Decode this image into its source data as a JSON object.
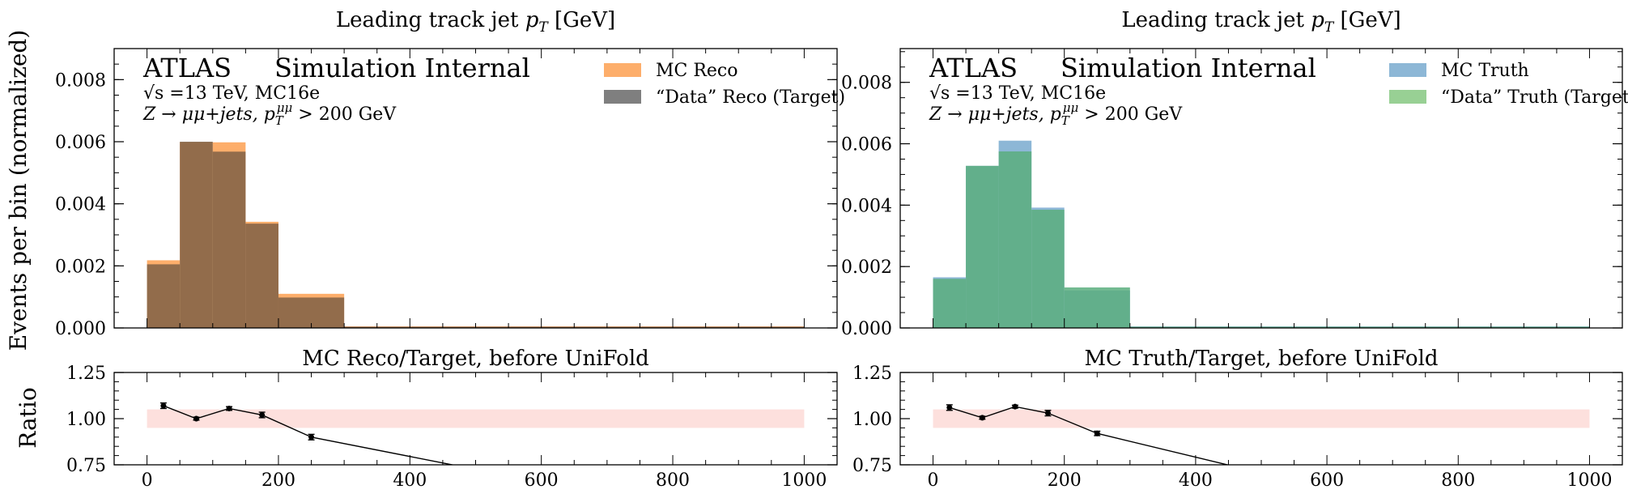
{
  "y_axis_label": "Events per bin (normalized)",
  "ratio_axis_label": "Ratio",
  "chart_data": [
    {
      "type": "histogram",
      "title": "Leading track jet p_T [GeV]",
      "title_prefix": "Leading track jet ",
      "title_var": "p",
      "title_sub": "T",
      "title_suffix": " [GeV]",
      "atlas_label": "ATLAS",
      "atlas_sub": "Simulation Internal",
      "energy_text": "√s =13 TeV, MC16e",
      "process_text": "Z → μμ+jets, p_T^μμ > 200 GeV",
      "process_main": "Z → μμ+jets, p",
      "process_sup": "μμ",
      "process_sub": "T",
      "process_tail": " > 200 GeV",
      "xlim": [
        -50,
        1050
      ],
      "ylim": [
        0,
        0.009
      ],
      "yticks": [
        "0.000",
        "0.002",
        "0.004",
        "0.006",
        "0.008"
      ],
      "ytick_values": [
        0,
        0.002,
        0.004,
        0.006,
        0.008
      ],
      "grid": false,
      "legend_position": "top-right",
      "bin_edges": [
        0,
        50,
        100,
        150,
        200,
        300,
        1000
      ],
      "series": [
        {
          "name": "MC Reco",
          "color": "#fdae6b",
          "values": [
            0.00218,
            0.00598,
            0.00598,
            0.00342,
            0.0011,
            5e-05
          ]
        },
        {
          "name": "“Data” Reco (Target)",
          "color": "#7f6045",
          "legend_color": "#7f7f7f",
          "values": [
            0.00205,
            0.006,
            0.00568,
            0.00336,
            0.00098,
            4e-05
          ]
        }
      ],
      "ratio": {
        "title": "MC Reco/Target, before UniFold",
        "ylim": [
          0.75,
          1.25
        ],
        "yticks": [
          "0.75",
          "1.00",
          "1.25"
        ],
        "ytick_values": [
          0.75,
          1.0,
          1.25
        ],
        "xticks": [
          "0",
          "200",
          "400",
          "600",
          "800",
          "1000"
        ],
        "xtick_values": [
          0,
          200,
          400,
          600,
          800,
          1000
        ],
        "band": [
          0.95,
          1.05
        ],
        "band_color": "#fde0dd",
        "points": [
          {
            "x": 25,
            "y": 1.07,
            "err": 0.015
          },
          {
            "x": 75,
            "y": 1.0,
            "err": 0.008
          },
          {
            "x": 125,
            "y": 1.055,
            "err": 0.01
          },
          {
            "x": 175,
            "y": 1.02,
            "err": 0.015
          },
          {
            "x": 250,
            "y": 0.9,
            "err": 0.015
          },
          {
            "x": 650,
            "y": 0.62,
            "err": 0.0
          }
        ]
      }
    },
    {
      "type": "histogram",
      "title": "Leading track jet p_T [GeV]",
      "title_prefix": "Leading track jet ",
      "title_var": "p",
      "title_sub": "T",
      "title_suffix": " [GeV]",
      "atlas_label": "ATLAS",
      "atlas_sub": "Simulation Internal",
      "energy_text": "√s =13 TeV, MC16e",
      "process_text": "Z → μμ+jets, p_T^μμ > 200 GeV",
      "process_main": "Z → μμ+jets, p",
      "process_sup": "μμ",
      "process_sub": "T",
      "process_tail": " > 200 GeV",
      "xlim": [
        -50,
        1050
      ],
      "ylim": [
        0,
        0.0091
      ],
      "yticks": [
        "0.000",
        "0.002",
        "0.004",
        "0.006",
        "0.008"
      ],
      "ytick_values": [
        0,
        0.002,
        0.004,
        0.006,
        0.008
      ],
      "grid": false,
      "legend_position": "top-right",
      "bin_edges": [
        0,
        50,
        100,
        150,
        200,
        300,
        1000
      ],
      "series": [
        {
          "name": "MC Truth",
          "color": "#8db7d6",
          "values": [
            0.00165,
            0.00528,
            0.0061,
            0.00392,
            0.00122,
            5e-05
          ]
        },
        {
          "name": "“Data” Truth (Target)",
          "color": "#5bae7e",
          "legend_color": "#98d094",
          "values": [
            0.0016,
            0.00528,
            0.00575,
            0.00385,
            0.00132,
            4e-05
          ]
        }
      ],
      "ratio": {
        "title": "MC Truth/Target, before UniFold",
        "ylim": [
          0.75,
          1.25
        ],
        "yticks": [
          "0.75",
          "1.00",
          "1.25"
        ],
        "ytick_values": [
          0.75,
          1.0,
          1.25
        ],
        "xticks": [
          "0",
          "200",
          "400",
          "600",
          "800",
          "1000"
        ],
        "xtick_values": [
          0,
          200,
          400,
          600,
          800,
          1000
        ],
        "band": [
          0.95,
          1.05
        ],
        "band_color": "#fde0dd",
        "points": [
          {
            "x": 25,
            "y": 1.06,
            "err": 0.015
          },
          {
            "x": 75,
            "y": 1.005,
            "err": 0.008
          },
          {
            "x": 125,
            "y": 1.065,
            "err": 0.008
          },
          {
            "x": 175,
            "y": 1.03,
            "err": 0.015
          },
          {
            "x": 250,
            "y": 0.92,
            "err": 0.012
          },
          {
            "x": 600,
            "y": 0.62,
            "err": 0.0
          }
        ]
      }
    }
  ]
}
